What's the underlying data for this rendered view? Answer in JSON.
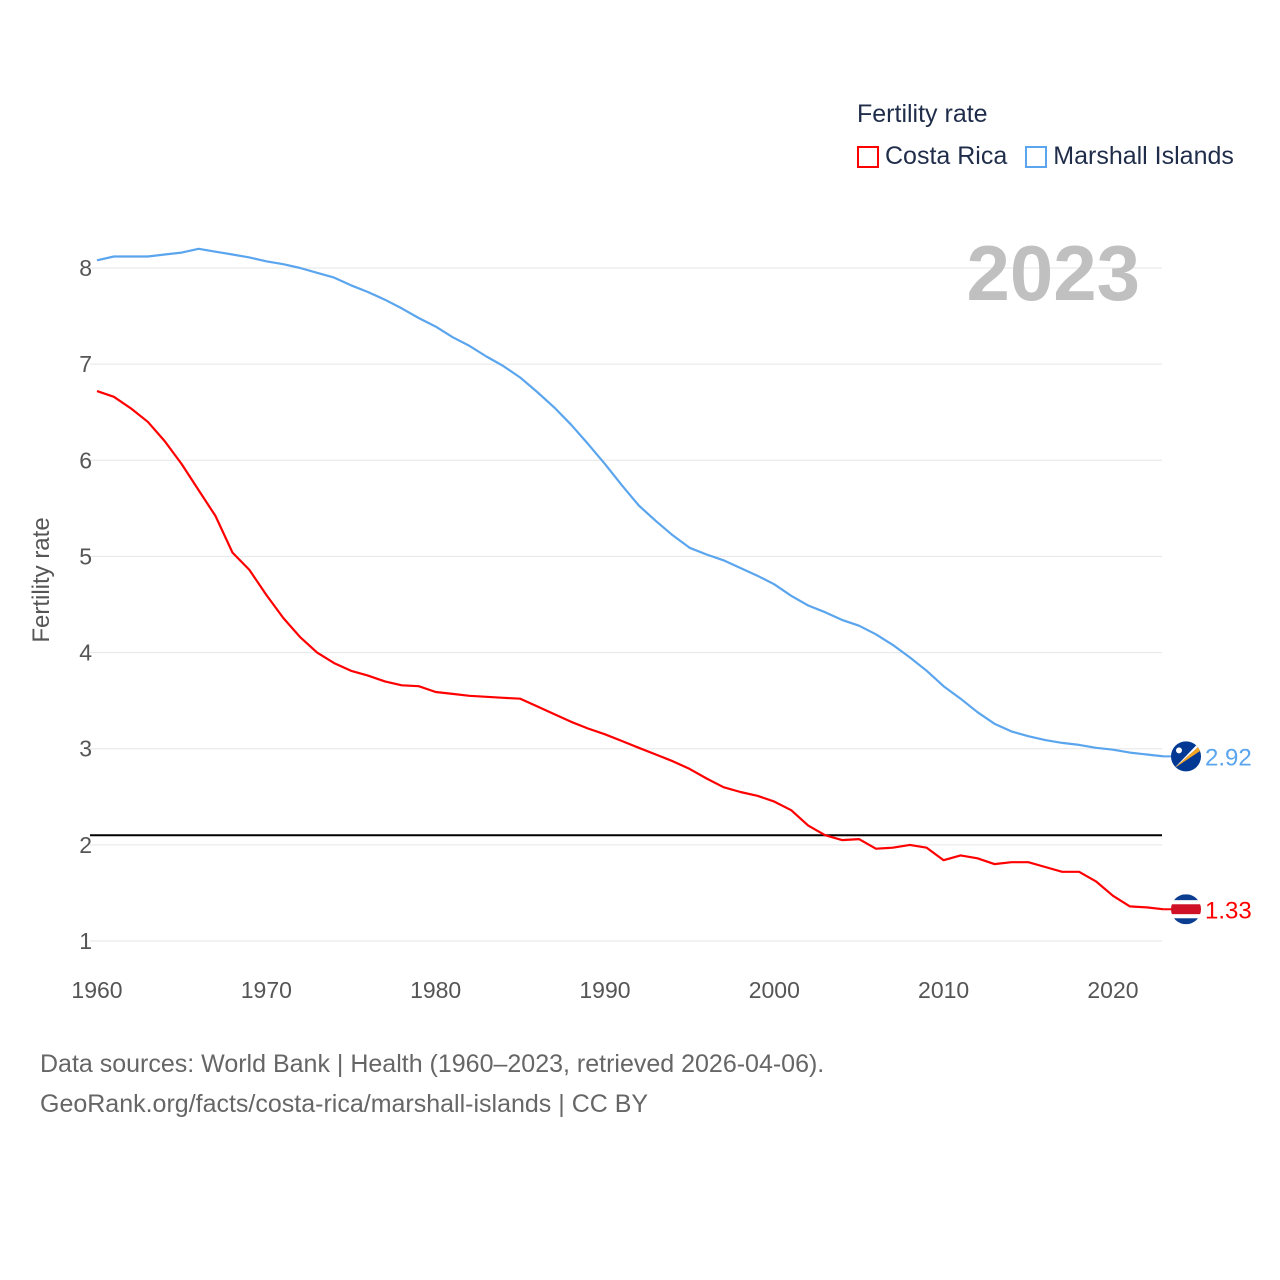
{
  "chart_data": {
    "type": "line",
    "title": "Fertility rate",
    "year_label": "2023",
    "ylabel": "Fertility rate",
    "xlabel": "",
    "xlim": [
      1960,
      2023
    ],
    "ylim": [
      1,
      8
    ],
    "x_ticks": [
      1960,
      1970,
      1980,
      1990,
      2000,
      2010,
      2020
    ],
    "y_ticks": [
      1,
      2,
      3,
      4,
      5,
      6,
      7,
      8
    ],
    "grid": true,
    "legend_position": "top-right",
    "reference_line": {
      "value": 2.1,
      "color": "#000000"
    },
    "x": [
      1960,
      1961,
      1962,
      1963,
      1964,
      1965,
      1966,
      1967,
      1968,
      1969,
      1970,
      1971,
      1972,
      1973,
      1974,
      1975,
      1976,
      1977,
      1978,
      1979,
      1980,
      1981,
      1982,
      1983,
      1984,
      1985,
      1986,
      1987,
      1988,
      1989,
      1990,
      1991,
      1992,
      1993,
      1994,
      1995,
      1996,
      1997,
      1998,
      1999,
      2000,
      2001,
      2002,
      2003,
      2004,
      2005,
      2006,
      2007,
      2008,
      2009,
      2010,
      2011,
      2012,
      2013,
      2014,
      2015,
      2016,
      2017,
      2018,
      2019,
      2020,
      2021,
      2022,
      2023
    ],
    "series": [
      {
        "name": "Costa Rica",
        "color": "#ff0000",
        "end_label": "1.33",
        "values": [
          6.72,
          6.66,
          6.54,
          6.4,
          6.2,
          5.96,
          5.69,
          5.42,
          5.04,
          4.86,
          4.6,
          4.36,
          4.16,
          4.0,
          3.89,
          3.81,
          3.76,
          3.7,
          3.66,
          3.65,
          3.59,
          3.57,
          3.55,
          3.54,
          3.53,
          3.52,
          3.44,
          3.36,
          3.28,
          3.21,
          3.15,
          3.08,
          3.01,
          2.94,
          2.87,
          2.79,
          2.69,
          2.6,
          2.55,
          2.51,
          2.45,
          2.36,
          2.2,
          2.1,
          2.05,
          2.06,
          1.96,
          1.97,
          2.0,
          1.97,
          1.84,
          1.89,
          1.86,
          1.8,
          1.82,
          1.82,
          1.77,
          1.72,
          1.72,
          1.62,
          1.47,
          1.36,
          1.35,
          1.33
        ]
      },
      {
        "name": "Marshall Islands",
        "color": "#5aa5ee",
        "end_label": "2.92",
        "values": [
          8.08,
          8.12,
          8.12,
          8.12,
          8.14,
          8.16,
          8.2,
          8.17,
          8.14,
          8.11,
          8.07,
          8.04,
          8.0,
          7.95,
          7.9,
          7.82,
          7.75,
          7.67,
          7.58,
          7.48,
          7.39,
          7.28,
          7.19,
          7.08,
          6.98,
          6.86,
          6.71,
          6.55,
          6.37,
          6.17,
          5.96,
          5.74,
          5.53,
          5.37,
          5.22,
          5.09,
          5.02,
          4.96,
          4.88,
          4.8,
          4.71,
          4.59,
          4.49,
          4.42,
          4.34,
          4.28,
          4.19,
          4.08,
          3.95,
          3.81,
          3.65,
          3.52,
          3.38,
          3.26,
          3.18,
          3.13,
          3.09,
          3.06,
          3.04,
          3.01,
          2.99,
          2.96,
          2.94,
          2.92
        ]
      }
    ]
  },
  "source_line1": "Data sources: World Bank | Health (1960–2023, retrieved 2026-04-06).",
  "source_line2": "GeoRank.org/facts/costa-rica/marshall-islands | CC BY"
}
